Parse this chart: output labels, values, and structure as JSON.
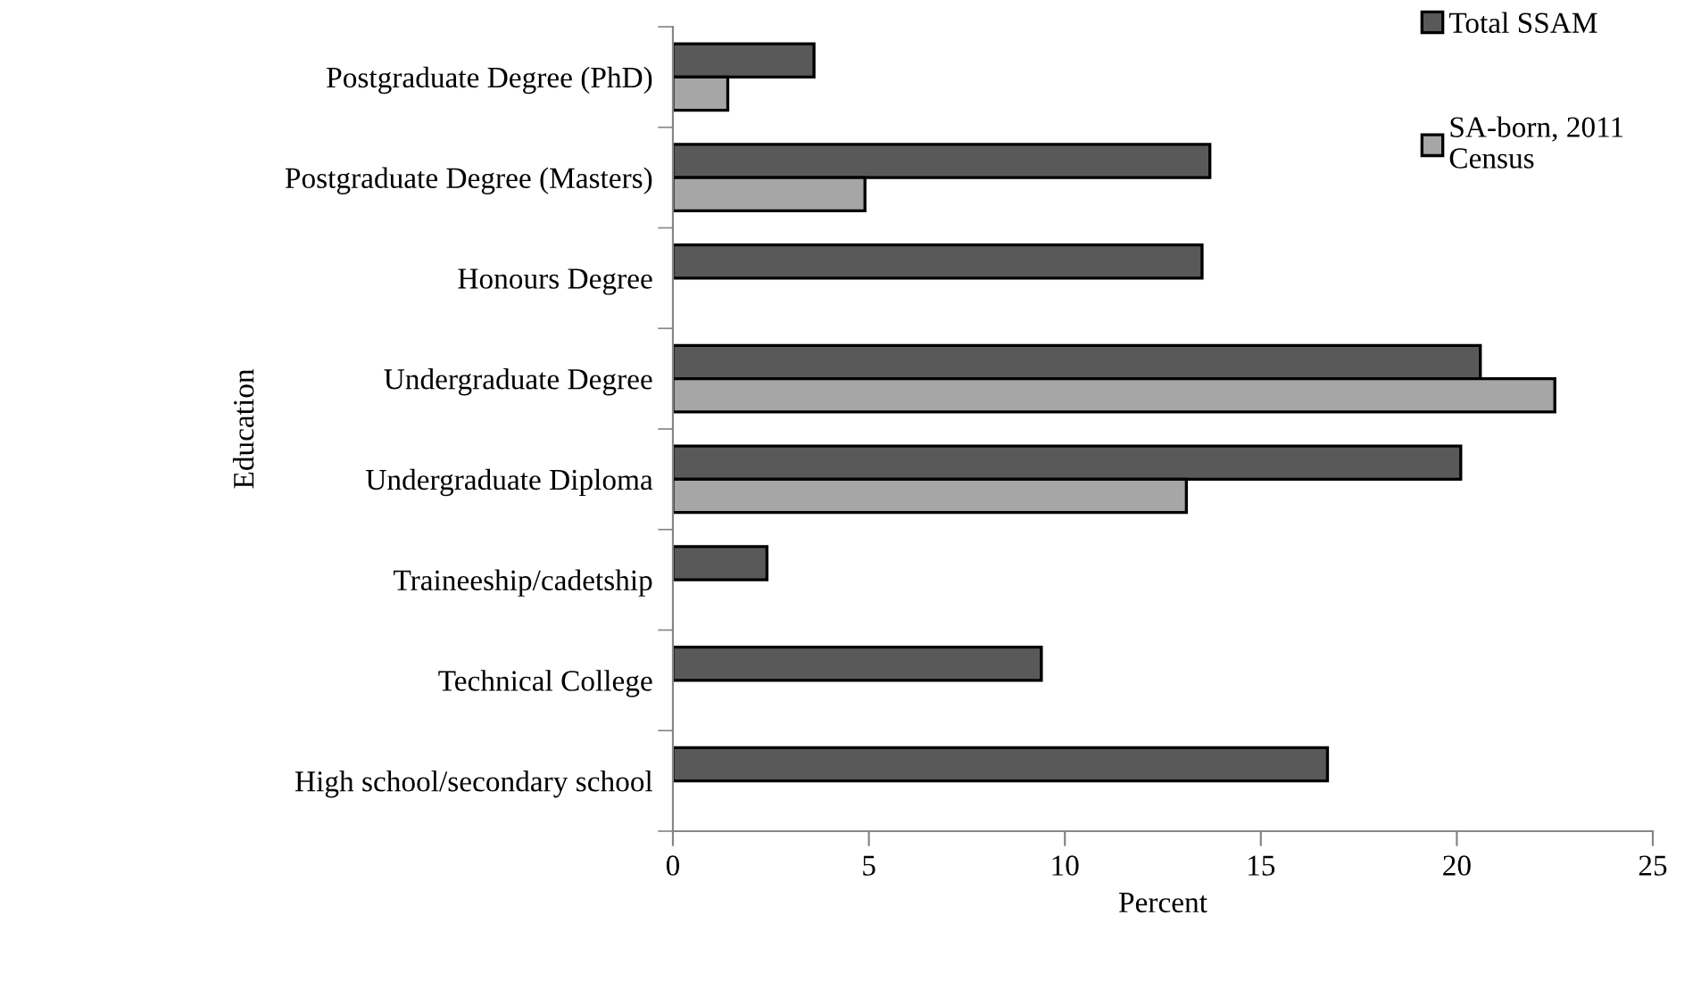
{
  "chart_data": {
    "type": "bar",
    "orientation": "horizontal",
    "xlabel": "Percent",
    "ylabel": "Education",
    "categories": [
      "Postgraduate Degree (PhD)",
      "Postgraduate Degree (Masters)",
      "Honours Degree",
      "Undergraduate Degree",
      "Undergraduate Diploma",
      "Traineeship/cadetship",
      "Technical College",
      "High school/secondary school"
    ],
    "series": [
      {
        "name": "Total SSAM",
        "color": "#595959",
        "values": [
          3.6,
          13.7,
          13.5,
          20.6,
          20.1,
          2.4,
          9.4,
          16.7
        ]
      },
      {
        "name": "SA-born, 2011 Census",
        "color": "#a6a6a6",
        "values": [
          1.4,
          4.9,
          null,
          22.5,
          13.1,
          null,
          null,
          null
        ]
      }
    ],
    "xlim": [
      0,
      25
    ],
    "xticks": [
      0,
      5,
      10,
      15,
      20,
      25
    ],
    "grid": false,
    "legend": "top right"
  }
}
